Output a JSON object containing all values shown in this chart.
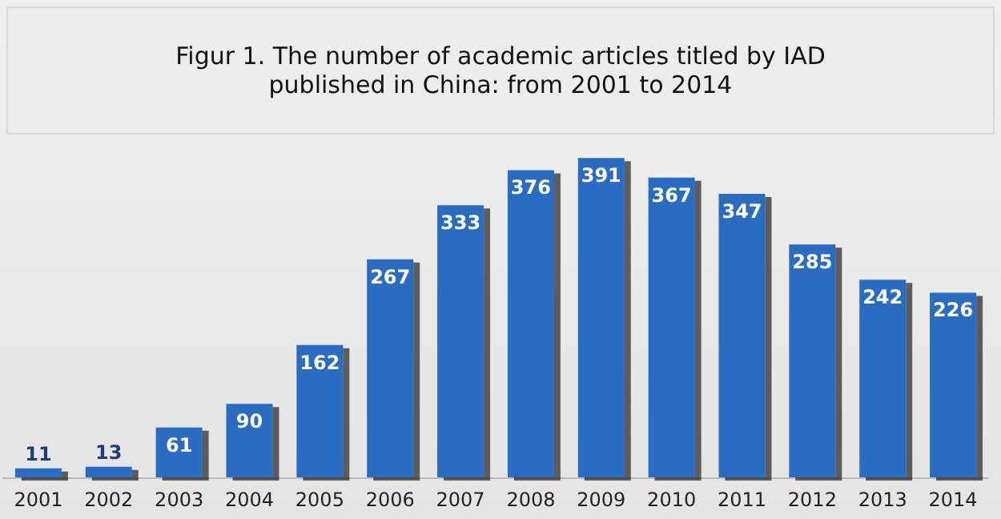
{
  "chart_data": {
    "type": "bar",
    "title": "Figur 1. The number of academic articles titled by IAD published in China: from 2001 to 2014",
    "categories": [
      "2001",
      "2002",
      "2003",
      "2004",
      "2005",
      "2006",
      "2007",
      "2008",
      "2009",
      "2010",
      "2011",
      "2012",
      "2013",
      "2014"
    ],
    "values": [
      11,
      13,
      61,
      90,
      162,
      267,
      333,
      376,
      391,
      367,
      347,
      285,
      242,
      226
    ],
    "color": "#2a6cc2",
    "data_labels": true
  }
}
